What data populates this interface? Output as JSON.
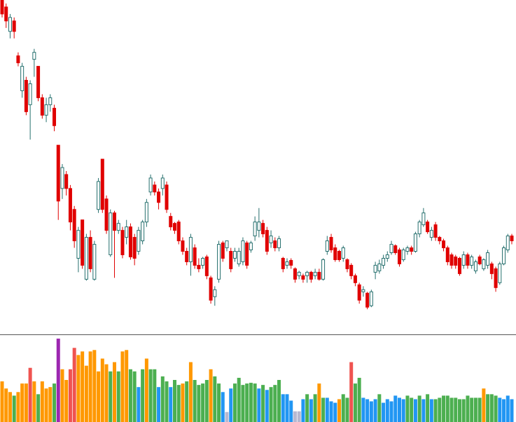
{
  "chart_data": {
    "type": "candlestick",
    "up_color": "#26706e",
    "down_color": "#e00000",
    "ylim": [
      0,
      480
    ],
    "volume_ylim": [
      0,
      120
    ],
    "open": [
      480,
      470,
      435,
      450,
      400,
      350,
      365,
      330,
      395,
      385,
      340,
      315,
      330,
      325,
      272,
      210,
      230,
      210,
      180,
      110,
      165,
      80,
      140,
      80,
      180,
      252,
      195,
      115,
      175,
      150,
      150,
      140,
      155,
      140,
      120,
      135,
      162,
      205,
      215,
      205,
      210,
      215,
      170,
      160,
      162,
      135,
      120,
      105,
      125,
      100,
      100,
      112,
      82,
      55,
      80,
      132,
      125,
      120,
      110,
      102,
      105,
      132,
      122,
      142,
      150,
      160,
      150,
      132,
      135,
      125,
      110,
      100,
      107,
      95,
      85,
      85,
      85,
      90,
      85,
      90,
      80,
      120,
      140,
      125,
      120,
      110,
      108,
      100,
      85,
      72,
      62,
      60,
      42,
      90,
      92,
      100,
      110,
      118,
      128,
      122,
      108,
      120,
      125,
      120,
      145,
      158,
      162,
      140,
      158,
      140,
      135,
      125,
      115,
      112,
      110,
      100,
      115,
      100,
      92,
      112,
      95,
      100,
      102,
      95,
      75,
      102,
      122,
      142
    ],
    "high": [
      480,
      475,
      460,
      455,
      405,
      390,
      370,
      365,
      410,
      385,
      345,
      340,
      345,
      330,
      272,
      245,
      235,
      215,
      185,
      155,
      165,
      145,
      150,
      135,
      225,
      252,
      200,
      180,
      178,
      165,
      155,
      165,
      160,
      145,
      155,
      165,
      195,
      230,
      220,
      210,
      230,
      220,
      175,
      162,
      165,
      140,
      125,
      145,
      130,
      110,
      112,
      115,
      85,
      70,
      135,
      135,
      135,
      125,
      125,
      125,
      140,
      135,
      135,
      170,
      182,
      165,
      155,
      150,
      140,
      142,
      112,
      110,
      110,
      97,
      92,
      88,
      92,
      92,
      95,
      95,
      110,
      142,
      145,
      130,
      122,
      128,
      110,
      103,
      88,
      75,
      70,
      62,
      65,
      105,
      108,
      115,
      120,
      135,
      130,
      125,
      125,
      128,
      128,
      148,
      165,
      182,
      165,
      155,
      162,
      142,
      138,
      128,
      118,
      115,
      112,
      120,
      118,
      115,
      108,
      115,
      110,
      122,
      105,
      98,
      105,
      128,
      145,
      145
    ],
    "low": [
      455,
      440,
      425,
      425,
      385,
      340,
      315,
      280,
      370,
      335,
      310,
      305,
      320,
      292,
      165,
      195,
      200,
      150,
      125,
      90,
      95,
      78,
      90,
      78,
      175,
      175,
      145,
      112,
      82,
      145,
      110,
      130,
      108,
      100,
      115,
      130,
      155,
      200,
      200,
      180,
      200,
      175,
      150,
      145,
      130,
      115,
      100,
      85,
      95,
      90,
      95,
      80,
      45,
      42,
      75,
      105,
      120,
      90,
      105,
      98,
      100,
      95,
      118,
      135,
      140,
      140,
      115,
      125,
      120,
      120,
      90,
      95,
      95,
      75,
      80,
      75,
      75,
      75,
      80,
      78,
      78,
      115,
      118,
      105,
      105,
      105,
      90,
      80,
      70,
      45,
      55,
      37,
      40,
      80,
      88,
      95,
      105,
      115,
      115,
      98,
      105,
      115,
      115,
      118,
      140,
      155,
      145,
      135,
      135,
      130,
      120,
      100,
      95,
      95,
      85,
      95,
      95,
      95,
      88,
      100,
      92,
      95,
      80,
      62,
      72,
      100,
      118,
      130
    ],
    "close": [
      460,
      450,
      455,
      435,
      390,
      385,
      320,
      360,
      405,
      340,
      315,
      330,
      340,
      300,
      192,
      240,
      210,
      162,
      135,
      150,
      100,
      140,
      95,
      130,
      220,
      180,
      150,
      175,
      150,
      160,
      115,
      155,
      112,
      110,
      150,
      162,
      190,
      225,
      205,
      190,
      225,
      180,
      155,
      150,
      135,
      120,
      105,
      140,
      100,
      95,
      110,
      85,
      50,
      65,
      130,
      110,
      135,
      95,
      120,
      120,
      135,
      100,
      132,
      162,
      162,
      145,
      120,
      142,
      125,
      138,
      95,
      105,
      100,
      80,
      90,
      80,
      90,
      80,
      90,
      80,
      108,
      135,
      122,
      108,
      108,
      125,
      95,
      85,
      75,
      50,
      65,
      40,
      62,
      100,
      102,
      110,
      115,
      130,
      118,
      102,
      122,
      125,
      120,
      145,
      162,
      175,
      148,
      150,
      140,
      135,
      125,
      105,
      100,
      100,
      88,
      115,
      100,
      112,
      105,
      102,
      108,
      118,
      88,
      68,
      102,
      125,
      142,
      135
    ],
    "volume": [
      57,
      47,
      42,
      37,
      42,
      54,
      54,
      76,
      57,
      39,
      57,
      47,
      49,
      54,
      117,
      74,
      59,
      74,
      104,
      94,
      99,
      79,
      99,
      101,
      71,
      89,
      81,
      71,
      84,
      71,
      99,
      101,
      74,
      71,
      49,
      74,
      89,
      74,
      74,
      49,
      64,
      57,
      49,
      59,
      52,
      54,
      57,
      84,
      59,
      52,
      54,
      59,
      74,
      64,
      54,
      42,
      14,
      47,
      54,
      62,
      52,
      54,
      55,
      54,
      47,
      52,
      45,
      49,
      52,
      59,
      39,
      39,
      30,
      15,
      15,
      32,
      39,
      32,
      39,
      54,
      34,
      34,
      29,
      27,
      32,
      39,
      34,
      84,
      54,
      62,
      34,
      32,
      29,
      32,
      39,
      27,
      32,
      29,
      37,
      34,
      32,
      37,
      34,
      32,
      37,
      32,
      39,
      32,
      32,
      34,
      37,
      37,
      34,
      34,
      32,
      32,
      37,
      34,
      34,
      34,
      47,
      39,
      39,
      37,
      34,
      32,
      37,
      32
    ],
    "volume_colors": [
      "#ff9800",
      "#ff9800",
      "#ff9800",
      "#4caf50",
      "#ff9800",
      "#ff9800",
      "#ff9800",
      "#ef5350",
      "#ff9800",
      "#4caf50",
      "#ff9800",
      "#ff9800",
      "#ff9800",
      "#4caf50",
      "#9c27b0",
      "#ff9800",
      "#ff9800",
      "#ef5350",
      "#ef5350",
      "#ff9800",
      "#ff9800",
      "#ff9800",
      "#ff9800",
      "#ff9800",
      "#ff9800",
      "#ff9800",
      "#ff9800",
      "#4caf50",
      "#ff9800",
      "#4caf50",
      "#ff9800",
      "#ff9800",
      "#4caf50",
      "#4caf50",
      "#2196f3",
      "#4caf50",
      "#ff9800",
      "#4caf50",
      "#4caf50",
      "#2196f3",
      "#4caf50",
      "#4caf50",
      "#2196f3",
      "#4caf50",
      "#4caf50",
      "#ff9800",
      "#4caf50",
      "#ff9800",
      "#4caf50",
      "#4caf50",
      "#4caf50",
      "#4caf50",
      "#ff9800",
      "#4caf50",
      "#4caf50",
      "#2196f3",
      "#b8b8d0",
      "#2196f3",
      "#4caf50",
      "#4caf50",
      "#4caf50",
      "#4caf50",
      "#4caf50",
      "#4caf50",
      "#2196f3",
      "#4caf50",
      "#2196f3",
      "#4caf50",
      "#4caf50",
      "#4caf50",
      "#2196f3",
      "#2196f3",
      "#2196f3",
      "#b8b8d0",
      "#b8b8d0",
      "#2196f3",
      "#4caf50",
      "#2196f3",
      "#4caf50",
      "#ff9800",
      "#4caf50",
      "#2196f3",
      "#2196f3",
      "#2196f3",
      "#ff9800",
      "#4caf50",
      "#4caf50",
      "#ef5350",
      "#4caf50",
      "#4caf50",
      "#2196f3",
      "#2196f3",
      "#2196f3",
      "#2196f3",
      "#4caf50",
      "#2196f3",
      "#2196f3",
      "#2196f3",
      "#2196f3",
      "#2196f3",
      "#2196f3",
      "#4caf50",
      "#4caf50",
      "#2196f3",
      "#4caf50",
      "#2196f3",
      "#4caf50",
      "#2196f3",
      "#4caf50",
      "#4caf50",
      "#4caf50",
      "#4caf50",
      "#4caf50",
      "#4caf50",
      "#4caf50",
      "#4caf50",
      "#4caf50",
      "#4caf50",
      "#4caf50",
      "#4caf50",
      "#ff9800",
      "#4caf50",
      "#4caf50",
      "#4caf50",
      "#2196f3",
      "#2196f3",
      "#2196f3",
      "#2196f3"
    ]
  }
}
